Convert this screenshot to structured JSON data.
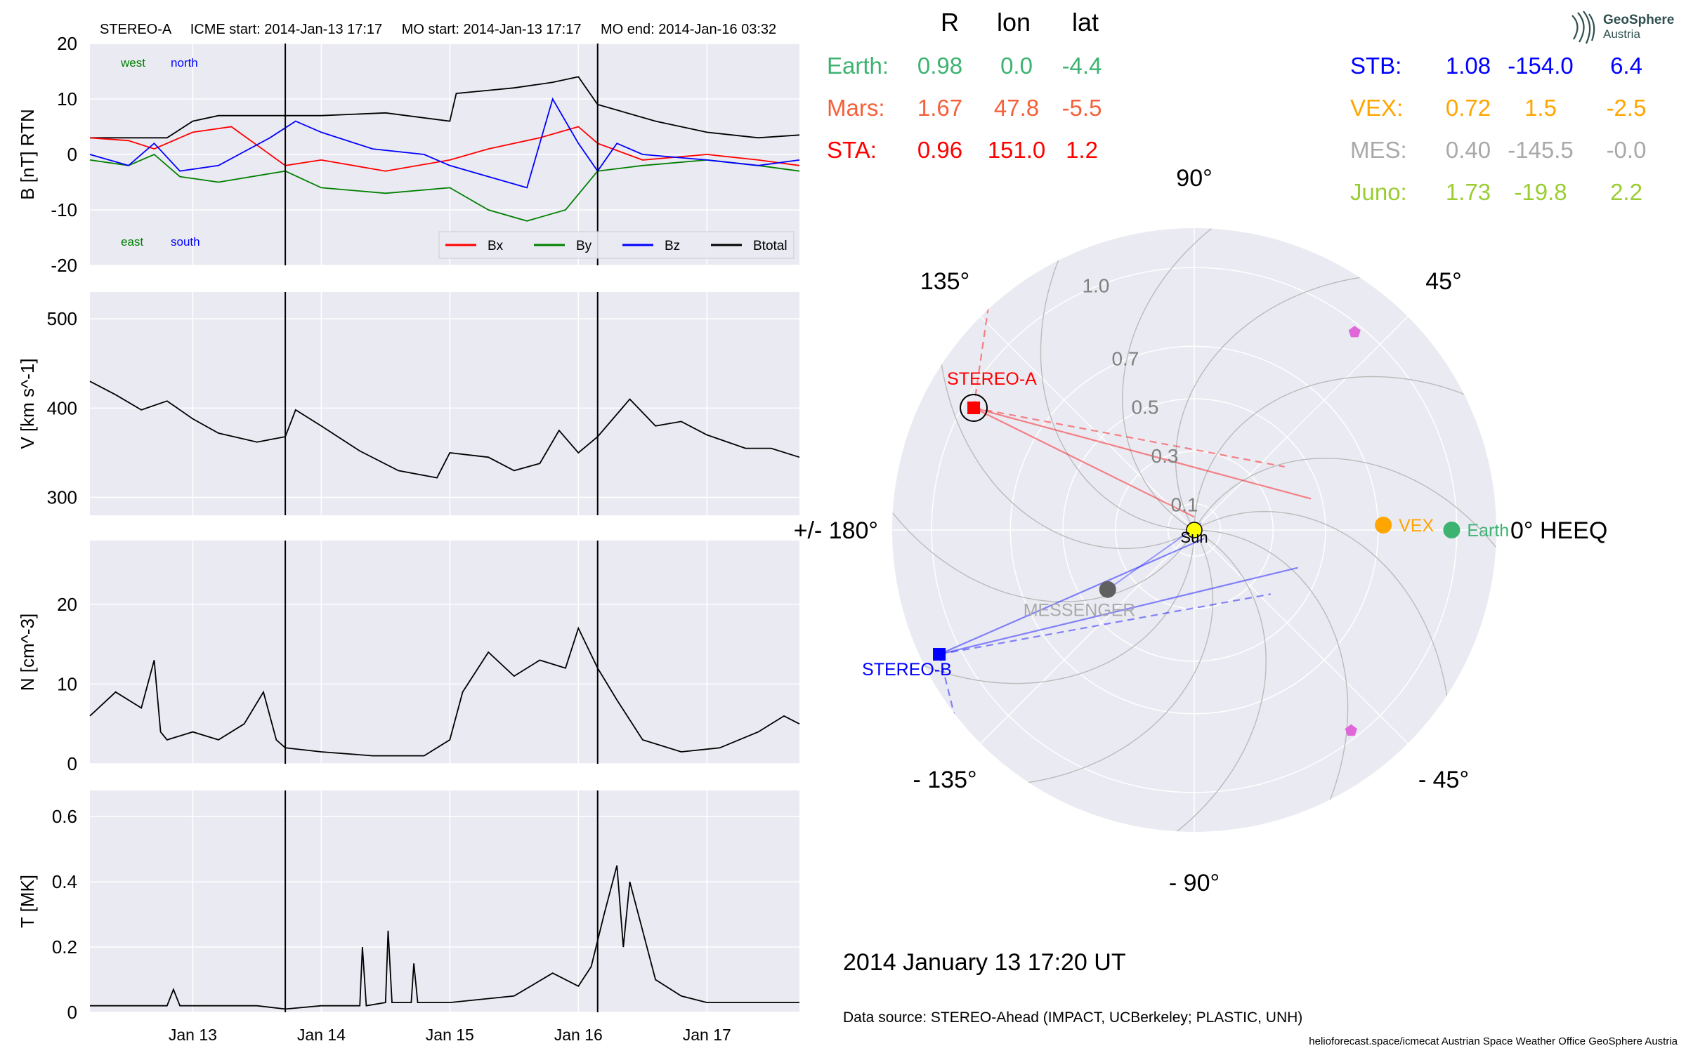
{
  "header": {
    "spacecraft": "STEREO-A",
    "icme_start": "ICME start: 2014-Jan-13 17:17",
    "mo_start": "MO start: 2014-Jan-13 17:17",
    "mo_end": "MO end: 2014-Jan-16 03:32"
  },
  "colors": {
    "panel_bg": "#eaeaf2",
    "grid": "#ffffff",
    "bx": "#ff0000",
    "by": "#008000",
    "bz": "#0000ff",
    "btotal": "#000000",
    "earth": "#3cb371",
    "mars": "#f4613b",
    "sta": "#ff0000",
    "stb": "#0000ff",
    "vex": "#ffa500",
    "mes": "#a9a9a9",
    "juno": "#9acd32",
    "sun": "#ffff00",
    "messenger_dot": "#606060",
    "pentagon": "#e067d9"
  },
  "chart_data": [
    {
      "type": "line",
      "name": "magnetic-field",
      "ylabel": "B [nT] RTN",
      "ylim": [
        -20,
        20
      ],
      "yticks": [
        -20,
        -10,
        0,
        10,
        20
      ],
      "xlim": [
        12.2,
        17.72
      ],
      "annotations": [
        "west",
        "north",
        "east",
        "south"
      ],
      "legend": {
        "placement": "lower-right",
        "entries": [
          "Bx",
          "By",
          "Bz",
          "Btotal"
        ]
      },
      "vlines": [
        13.72,
        16.15
      ],
      "series": [
        {
          "name": "Btotal",
          "color": "#000000",
          "x": [
            12.2,
            12.8,
            13.0,
            13.2,
            13.72,
            14.0,
            14.5,
            15.0,
            15.05,
            15.5,
            15.8,
            16.0,
            16.15,
            16.3,
            16.6,
            17.0,
            17.4,
            17.72
          ],
          "y": [
            3,
            3,
            6,
            7,
            7,
            7,
            7.5,
            6,
            11,
            12,
            13,
            14,
            9,
            8,
            6,
            4,
            3,
            3.5
          ]
        },
        {
          "name": "Bx",
          "color": "#ff0000",
          "x": [
            12.2,
            12.5,
            12.7,
            13.0,
            13.3,
            13.72,
            14.0,
            14.5,
            15.0,
            15.3,
            15.7,
            16.0,
            16.15,
            16.5,
            17.0,
            17.4,
            17.72
          ],
          "y": [
            3,
            2.5,
            1,
            4,
            5,
            -2,
            -1,
            -3,
            -1,
            1,
            3,
            5,
            2,
            -1,
            0,
            -1,
            -2
          ]
        },
        {
          "name": "By",
          "color": "#008000",
          "x": [
            12.2,
            12.5,
            12.7,
            12.9,
            13.2,
            13.72,
            14.0,
            14.5,
            15.0,
            15.3,
            15.6,
            15.9,
            16.15,
            16.5,
            17.0,
            17.4,
            17.72
          ],
          "y": [
            -1,
            -2,
            0,
            -4,
            -5,
            -3,
            -6,
            -7,
            -6,
            -10,
            -12,
            -10,
            -3,
            -2,
            -1,
            -2,
            -3
          ]
        },
        {
          "name": "Bz",
          "color": "#0000ff",
          "x": [
            12.2,
            12.5,
            12.7,
            12.9,
            13.2,
            13.6,
            13.8,
            14.0,
            14.4,
            14.8,
            15.0,
            15.3,
            15.6,
            15.8,
            16.0,
            16.15,
            16.3,
            16.5,
            17.0,
            17.4,
            17.72
          ],
          "y": [
            0,
            -2,
            2,
            -3,
            -2,
            3,
            6,
            4,
            1,
            0,
            -2,
            -4,
            -6,
            10,
            2,
            -3,
            2,
            0,
            -1,
            -2,
            -1
          ]
        }
      ]
    },
    {
      "type": "line",
      "name": "velocity",
      "ylabel": "V [km s^-1]",
      "ylim": [
        280,
        530
      ],
      "yticks": [
        300,
        400,
        500
      ],
      "xlim": [
        12.2,
        17.72
      ],
      "vlines": [
        13.72,
        16.15
      ],
      "series": [
        {
          "name": "V",
          "color": "#000000",
          "x": [
            12.2,
            12.4,
            12.6,
            12.8,
            13.0,
            13.2,
            13.5,
            13.72,
            13.8,
            14.0,
            14.3,
            14.6,
            14.9,
            15.0,
            15.3,
            15.5,
            15.7,
            15.85,
            16.0,
            16.15,
            16.4,
            16.6,
            16.8,
            17.0,
            17.3,
            17.5,
            17.72
          ],
          "y": [
            430,
            415,
            398,
            408,
            388,
            372,
            362,
            368,
            398,
            380,
            352,
            330,
            322,
            350,
            345,
            330,
            338,
            375,
            350,
            368,
            410,
            380,
            385,
            370,
            355,
            355,
            345
          ]
        }
      ]
    },
    {
      "type": "line",
      "name": "density",
      "ylabel": "N [cm^-3]",
      "ylim": [
        0,
        28
      ],
      "yticks": [
        0,
        10,
        20
      ],
      "xlim": [
        12.2,
        17.72
      ],
      "vlines": [
        13.72,
        16.15
      ],
      "series": [
        {
          "name": "N",
          "color": "#000000",
          "x": [
            12.2,
            12.4,
            12.6,
            12.7,
            12.75,
            12.8,
            13.0,
            13.2,
            13.4,
            13.55,
            13.65,
            13.72,
            14.0,
            14.4,
            14.8,
            15.0,
            15.1,
            15.3,
            15.5,
            15.7,
            15.9,
            16.0,
            16.15,
            16.3,
            16.5,
            16.8,
            17.1,
            17.4,
            17.6,
            17.72
          ],
          "y": [
            6,
            9,
            7,
            13,
            4,
            3,
            4,
            3,
            5,
            9,
            3,
            2,
            1.5,
            1,
            1,
            3,
            9,
            14,
            11,
            13,
            12,
            17,
            12,
            8,
            3,
            1.5,
            2,
            4,
            6,
            5
          ]
        }
      ]
    },
    {
      "type": "line",
      "name": "temperature",
      "ylabel": "T [MK]",
      "ylim": [
        0,
        0.68
      ],
      "yticks": [
        0.0,
        0.2,
        0.4,
        0.6
      ],
      "xlim": [
        12.2,
        17.72
      ],
      "xticks": [
        "Jan 13",
        "Jan 14",
        "Jan 15",
        "Jan 16",
        "Jan 17"
      ],
      "xtick_values": [
        13,
        14,
        15,
        16,
        17
      ],
      "vlines": [
        13.72,
        16.15
      ],
      "series": [
        {
          "name": "T",
          "color": "#000000",
          "x": [
            12.2,
            12.8,
            12.85,
            12.9,
            13.5,
            13.72,
            14.0,
            14.3,
            14.32,
            14.35,
            14.5,
            14.52,
            14.55,
            14.7,
            14.72,
            14.75,
            15.0,
            15.5,
            15.8,
            16.0,
            16.1,
            16.2,
            16.3,
            16.35,
            16.4,
            16.5,
            16.6,
            16.8,
            17.0,
            17.72
          ],
          "y": [
            0.02,
            0.02,
            0.07,
            0.02,
            0.02,
            0.01,
            0.02,
            0.02,
            0.2,
            0.02,
            0.03,
            0.25,
            0.03,
            0.03,
            0.15,
            0.03,
            0.03,
            0.05,
            0.12,
            0.08,
            0.14,
            0.3,
            0.45,
            0.2,
            0.4,
            0.25,
            0.1,
            0.05,
            0.03,
            0.03
          ]
        }
      ]
    },
    {
      "type": "scatter",
      "name": "polar-positions",
      "rticks": [
        "0.1",
        "0.3",
        "0.5",
        "0.7",
        "1.0"
      ],
      "rtick_values": [
        0.1,
        0.3,
        0.5,
        0.7,
        1.0
      ],
      "angle_labels": [
        "90°",
        "45°",
        "0° HEEQ",
        "- 45°",
        "- 90°",
        "- 135°",
        "+/- 180°",
        "135°"
      ],
      "angle_label_values": [
        90,
        45,
        0,
        -45,
        -90,
        -135,
        180,
        135
      ],
      "rmax": 1.15,
      "bodies": [
        {
          "name": "Sun",
          "r": 0.0,
          "lon": 0.0,
          "color": "#ffff00"
        },
        {
          "name": "Earth",
          "r": 0.98,
          "lon": 0.0,
          "color": "#3cb371"
        },
        {
          "name": "VEX",
          "r": 0.72,
          "lon": 1.5,
          "color": "#ffa500"
        },
        {
          "name": "MESSENGER",
          "r": 0.4,
          "lon": -145.5,
          "color": "#606060"
        },
        {
          "name": "STEREO-A",
          "r": 0.96,
          "lon": 151.0,
          "color": "#ff0000"
        },
        {
          "name": "STEREO-B",
          "r": 1.08,
          "lon": -154.0,
          "color": "#0000ff"
        }
      ],
      "pentagons": [
        {
          "r": 0.97,
          "lon": 51
        },
        {
          "r": 0.97,
          "lon": -52
        }
      ]
    }
  ],
  "table": {
    "headers": [
      "R",
      "lon",
      "lat"
    ],
    "left_rows": [
      {
        "label": "Earth:",
        "R": "0.98",
        "lon": "0.0",
        "lat": "-4.4",
        "color": "#3cb371"
      },
      {
        "label": "Mars:",
        "R": "1.67",
        "lon": "47.8",
        "lat": "-5.5",
        "color": "#f4613b"
      },
      {
        "label": "STA:",
        "R": "0.96",
        "lon": "151.0",
        "lat": "1.2",
        "color": "#ff0000"
      }
    ],
    "right_rows": [
      {
        "label": "STB:",
        "R": "1.08",
        "lon": "-154.0",
        "lat": "6.4",
        "color": "#0000ff"
      },
      {
        "label": "VEX:",
        "R": "0.72",
        "lon": "1.5",
        "lat": "-2.5",
        "color": "#ffa500"
      },
      {
        "label": "MES:",
        "R": "0.40",
        "lon": "-145.5",
        "lat": "-0.0",
        "color": "#a9a9a9"
      },
      {
        "label": "Juno:",
        "R": "1.73",
        "lon": "-19.8",
        "lat": "2.2",
        "color": "#9acd32"
      }
    ]
  },
  "footer": {
    "timestamp": "2014 January 13  17:20 UT",
    "source": "Data source: STEREO-Ahead (IMPACT, UCBerkeley; PLASTIC, UNH)",
    "credits": "helioforecast.space/icmecat   Austrian Space Weather Office   GeoSphere Austria"
  },
  "logo": {
    "line1": "GeoSphere",
    "line2": "Austria"
  }
}
